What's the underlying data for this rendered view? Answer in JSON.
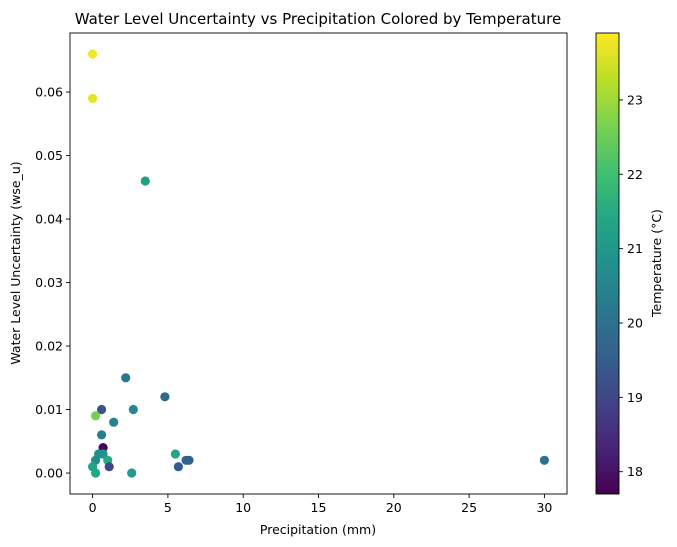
{
  "chart_data": {
    "type": "scatter",
    "title": "Water Level Uncertainty vs Precipitation Colored by Temperature",
    "xlabel": "Precipitation (mm)",
    "ylabel": "Water Level Uncertainty (wse_u)",
    "xlim": [
      -1.5,
      31.5
    ],
    "ylim": [
      -0.0033,
      0.0693
    ],
    "xticks": [
      0,
      5,
      10,
      15,
      20,
      25,
      30
    ],
    "xtick_labels": [
      "0",
      "5",
      "10",
      "15",
      "20",
      "25",
      "30"
    ],
    "yticks": [
      0,
      0.01,
      0.02,
      0.03,
      0.04,
      0.05,
      0.06
    ],
    "ytick_labels": [
      "0.00",
      "0.01",
      "0.02",
      "0.03",
      "0.04",
      "0.05",
      "0.06"
    ],
    "grid": false,
    "colormap": "viridis",
    "colorbar": {
      "label": "Temperature (°C)",
      "min": 17.7,
      "max": 23.9,
      "ticks": [
        18,
        19,
        20,
        21,
        22,
        23
      ],
      "tick_labels": [
        "18",
        "19",
        "20",
        "21",
        "22",
        "23"
      ]
    },
    "points": [
      {
        "x": 0.0,
        "y": 0.066,
        "temp": 23.8
      },
      {
        "x": 0.0,
        "y": 0.059,
        "temp": 23.7
      },
      {
        "x": 3.5,
        "y": 0.046,
        "temp": 21.2
      },
      {
        "x": 2.2,
        "y": 0.015,
        "temp": 20.1
      },
      {
        "x": 4.8,
        "y": 0.012,
        "temp": 19.8
      },
      {
        "x": 0.6,
        "y": 0.01,
        "temp": 19.3
      },
      {
        "x": 2.7,
        "y": 0.01,
        "temp": 20.6
      },
      {
        "x": 0.2,
        "y": 0.009,
        "temp": 22.6
      },
      {
        "x": 1.4,
        "y": 0.008,
        "temp": 20.4
      },
      {
        "x": 0.6,
        "y": 0.006,
        "temp": 20.3
      },
      {
        "x": 0.7,
        "y": 0.004,
        "temp": 17.8
      },
      {
        "x": 0.4,
        "y": 0.003,
        "temp": 20.8
      },
      {
        "x": 0.7,
        "y": 0.003,
        "temp": 20.9
      },
      {
        "x": 5.5,
        "y": 0.003,
        "temp": 21.4
      },
      {
        "x": 0.2,
        "y": 0.002,
        "temp": 20.7
      },
      {
        "x": 1.0,
        "y": 0.002,
        "temp": 21.5
      },
      {
        "x": 6.2,
        "y": 0.002,
        "temp": 19.8
      },
      {
        "x": 6.4,
        "y": 0.002,
        "temp": 19.6
      },
      {
        "x": 30.0,
        "y": 0.002,
        "temp": 20.0
      },
      {
        "x": 0.0,
        "y": 0.001,
        "temp": 21.3
      },
      {
        "x": 1.1,
        "y": 0.001,
        "temp": 19.0
      },
      {
        "x": 5.7,
        "y": 0.001,
        "temp": 19.5
      },
      {
        "x": 0.2,
        "y": 0.0,
        "temp": 21.4
      },
      {
        "x": 2.6,
        "y": 0.0,
        "temp": 21.1
      }
    ]
  }
}
